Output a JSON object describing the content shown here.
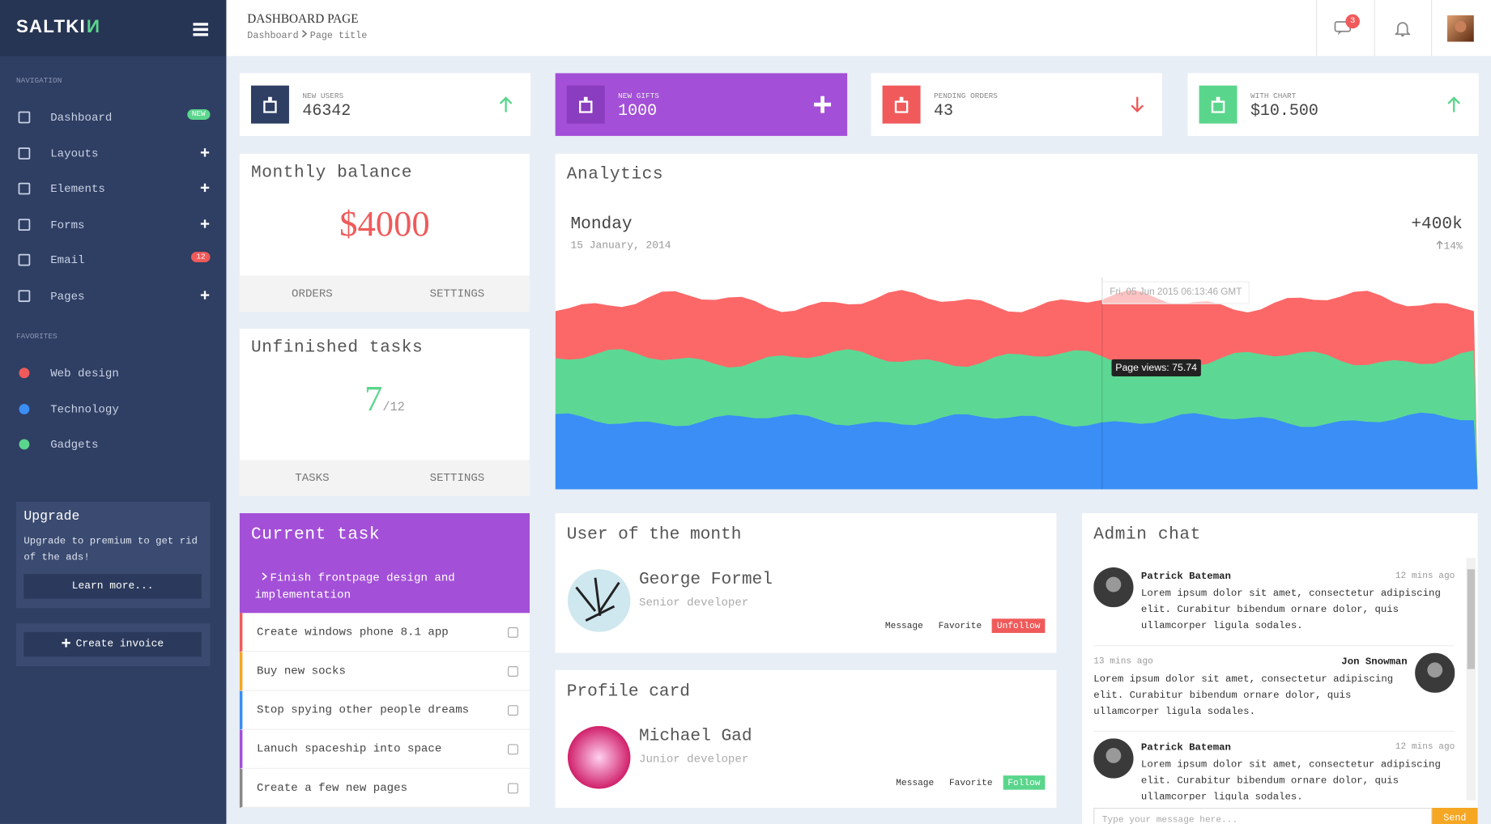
{
  "sidebar": {
    "brand": "SALTKI",
    "brand_mark": "N",
    "navigation_label": "NAVIGATION",
    "nav": [
      {
        "label": "Dashboard",
        "badge": "NEW"
      },
      {
        "label": "Layouts"
      },
      {
        "label": "Elements"
      },
      {
        "label": "Forms"
      },
      {
        "label": "Email",
        "badge": 12
      },
      {
        "label": "Pages"
      }
    ],
    "favorites_label": "FAVORITES",
    "favorites": [
      {
        "label": "Web design",
        "color": "#f05a5a"
      },
      {
        "label": "Technology",
        "color": "#3a8ef6"
      },
      {
        "label": "Gadgets",
        "color": "#5ad68c"
      }
    ],
    "upgrade": {
      "title": "Upgrade",
      "text": "Upgrade to premium to get rid of the ads!",
      "button": "Learn more..."
    },
    "create_invoice": "Create invoice"
  },
  "header": {
    "title": "DASHBOARD PAGE",
    "breadcrumb": [
      "Dashboard",
      "Page title"
    ],
    "messages_badge": 3
  },
  "stats": [
    {
      "label": "NEW USERS",
      "value": 46342
    },
    {
      "label": "NEW GIFTS",
      "value": 1000
    },
    {
      "label": "PENDING ORDERS",
      "value": 43
    },
    {
      "label": "WITH CHART",
      "value": "$10.500"
    }
  ],
  "balance": {
    "title": "Monthly balance",
    "amount": "$4000",
    "buttons": [
      "ORDERS",
      "SETTINGS"
    ]
  },
  "unfinished": {
    "title": "Unfinished tasks",
    "done": 7,
    "of_total": "/12",
    "buttons": [
      "TASKS",
      "SETTINGS"
    ]
  },
  "analytics": {
    "title": "Analytics",
    "day": "Monday",
    "date": "15 January, 2014",
    "total": "+400k",
    "change": "14%",
    "tooltip_time": "Fri, 05 Jun 2015 06:13:46 GMT",
    "tooltip": "Page views: 75.74"
  },
  "current_task": {
    "title": "Current task",
    "active": "Finish frontpage design and implementation",
    "items": [
      {
        "text": "Create windows phone 8.1 app",
        "color": "#f05a5a"
      },
      {
        "text": "Buy new socks",
        "color": "#f5a623"
      },
      {
        "text": "Stop spying other people dreams",
        "color": "#3a8ef6"
      },
      {
        "text": "Lanuch spaceship into space",
        "color": "#a34fd8"
      },
      {
        "text": "Create a few new pages",
        "color": "#888888"
      }
    ]
  },
  "user_of_month": {
    "title": "User of the month",
    "name": "George Formel",
    "role": "Senior developer",
    "actions": [
      "Message",
      "Favorite",
      "Unfollow"
    ]
  },
  "profile_card": {
    "title": "Profile card",
    "name": "Michael Gad",
    "role": "Junior developer",
    "actions": [
      "Message",
      "Favorite",
      "Follow"
    ]
  },
  "admin_chat": {
    "title": "Admin chat",
    "messages": [
      {
        "author": "Patrick Bateman",
        "time": "12 mins ago",
        "text": "Lorem ipsum dolor sit amet, consectetur adipiscing elit. Curabitur bibendum ornare dolor, quis ullamcorper ligula sodales.",
        "align": "left"
      },
      {
        "author": "Jon Snowman",
        "time": "13 mins ago",
        "text": "Lorem ipsum dolor sit amet, consectetur adipiscing elit. Curabitur bibendum ornare dolor, quis ullamcorper ligula sodales.",
        "align": "right"
      },
      {
        "author": "Patrick Bateman",
        "time": "12 mins ago",
        "text": "Lorem ipsum dolor sit amet, consectetur adipiscing elit. Curabitur bibendum ornare dolor, quis ullamcorper ligula sodales.",
        "align": "left"
      }
    ],
    "placeholder": "Type your message here...",
    "send": "Send"
  }
}
